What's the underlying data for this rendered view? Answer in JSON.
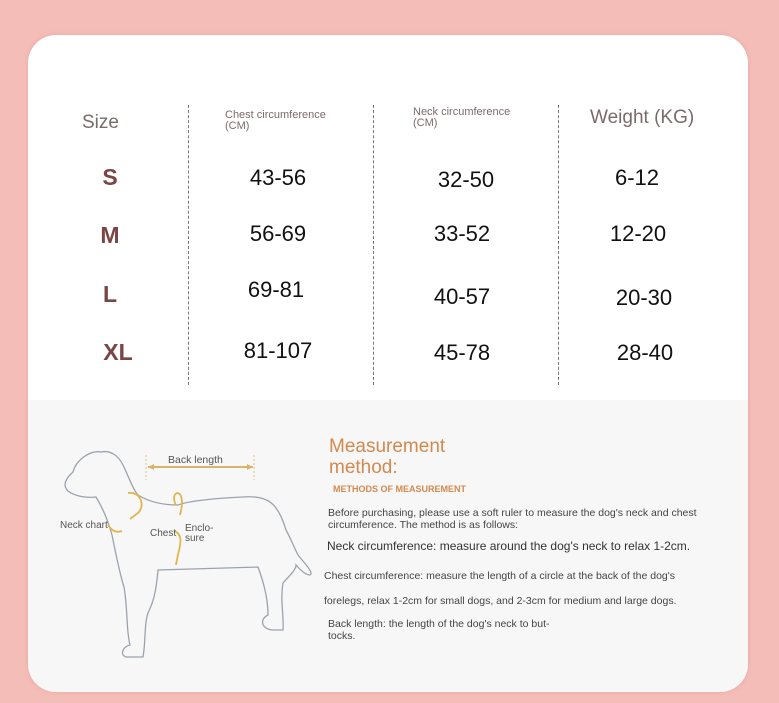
{
  "table": {
    "headers": [
      "Size",
      "Chest circumference (CM)",
      "Neck circumference (CM)",
      "Weight (KG)"
    ],
    "rows": [
      {
        "size": "S",
        "chest": "43-56",
        "neck": "32-50",
        "weight": "6-12"
      },
      {
        "size": "M",
        "chest": "56-69",
        "neck": "33-52",
        "weight": "12-20"
      },
      {
        "size": "L",
        "chest": "69-81",
        "neck": "40-57",
        "weight": "20-30"
      },
      {
        "size": "XL",
        "chest": "81-107",
        "neck": "45-78",
        "weight": "28-40"
      }
    ]
  },
  "diagram": {
    "back_length": "Back length",
    "neck_chart": "Neck chart",
    "chest": "Chest",
    "enclosure": "Enclo-sure"
  },
  "method": {
    "title": "Measurement method:",
    "subtitle": "METHODS OF MEASUREMENT",
    "intro": "Before purchasing, please use a soft ruler to measure the dog's neck and chest circumference. The method is as follows:",
    "neck": "Neck circumference: measure around the dog's neck to relax 1-2cm.",
    "chest_1": "Chest circumference: measure the length of a circle at the back of the dog's",
    "chest_2": "forelegs, relax 1-2cm for small dogs, and 2-3cm for medium and large dogs.",
    "back": "Back length: the length of the dog's neck to but-tocks."
  },
  "colors": {
    "background": "#f5bdb7",
    "accent": "#d2894e",
    "size_label": "#7a4545"
  }
}
